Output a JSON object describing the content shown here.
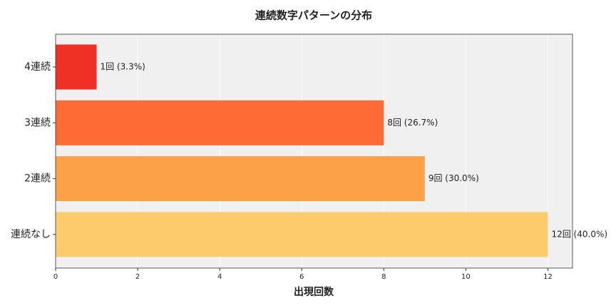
{
  "chart_data": {
    "type": "barh",
    "title": "連続数字パターンの分布",
    "xlabel": "出現回数",
    "categories": [
      "4連続",
      "3連続",
      "2連続",
      "連続なし"
    ],
    "values": [
      1,
      8,
      9,
      12
    ],
    "value_labels": [
      "1回 (3.3%)",
      "8回 (26.7%)",
      "9回 (30.0%)",
      "12回 (40.0%)"
    ],
    "colors": [
      "#ee3124",
      "#ff6b35",
      "#fca148",
      "#fdcb6b"
    ],
    "xlim": [
      0,
      12.6
    ],
    "xticks": [
      0,
      2,
      4,
      6,
      8,
      10,
      12
    ],
    "grid": true
  }
}
